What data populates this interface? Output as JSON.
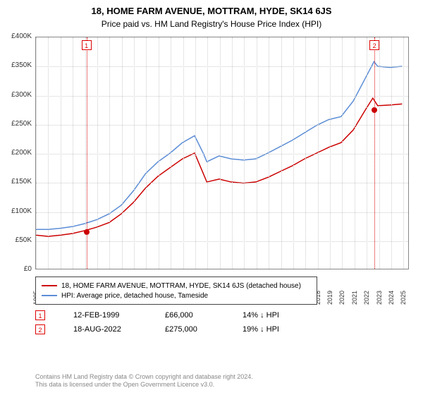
{
  "title": "18, HOME FARM AVENUE, MOTTRAM, HYDE, SK14 6JS",
  "subtitle": "Price paid vs. HM Land Registry's House Price Index (HPI)",
  "chart": {
    "type": "line",
    "background_color": "#ffffff",
    "grid_color": "#cccccc",
    "border_color": "#888888",
    "xlim": [
      1995,
      2025.5
    ],
    "ylim": [
      0,
      400000
    ],
    "ytick_step": 50000,
    "yticks": [
      "£0",
      "£50K",
      "£100K",
      "£150K",
      "£200K",
      "£250K",
      "£300K",
      "£350K",
      "£400K"
    ],
    "xticks": [
      1995,
      1996,
      1997,
      1998,
      1999,
      2000,
      2001,
      2002,
      2003,
      2004,
      2005,
      2006,
      2007,
      2008,
      2009,
      2010,
      2011,
      2012,
      2013,
      2014,
      2015,
      2016,
      2017,
      2018,
      2019,
      2020,
      2021,
      2022,
      2023,
      2024,
      2025
    ],
    "title_fontsize": 13,
    "label_fontsize": 10,
    "series": [
      {
        "name": "property",
        "label": "18, HOME FARM AVENUE, MOTTRAM, HYDE, SK14 6JS (detached house)",
        "color": "#cc0000",
        "line_width": 1.5,
        "data": [
          [
            1995,
            58000
          ],
          [
            1996,
            56000
          ],
          [
            1997,
            58000
          ],
          [
            1998,
            61000
          ],
          [
            1999,
            66000
          ],
          [
            2000,
            72000
          ],
          [
            2001,
            80000
          ],
          [
            2002,
            95000
          ],
          [
            2003,
            115000
          ],
          [
            2004,
            140000
          ],
          [
            2005,
            160000
          ],
          [
            2006,
            175000
          ],
          [
            2007,
            190000
          ],
          [
            2008,
            200000
          ],
          [
            2008.7,
            165000
          ],
          [
            2009,
            150000
          ],
          [
            2010,
            155000
          ],
          [
            2011,
            150000
          ],
          [
            2012,
            148000
          ],
          [
            2013,
            150000
          ],
          [
            2014,
            158000
          ],
          [
            2015,
            168000
          ],
          [
            2016,
            178000
          ],
          [
            2017,
            190000
          ],
          [
            2018,
            200000
          ],
          [
            2019,
            210000
          ],
          [
            2020,
            218000
          ],
          [
            2021,
            240000
          ],
          [
            2022,
            275000
          ],
          [
            2022.6,
            295000
          ],
          [
            2023,
            282000
          ],
          [
            2024,
            283000
          ],
          [
            2025,
            285000
          ]
        ]
      },
      {
        "name": "hpi",
        "label": "HPI: Average price, detached house, Tameside",
        "color": "#5b8dd6",
        "line_width": 1.5,
        "data": [
          [
            1995,
            68000
          ],
          [
            1996,
            68000
          ],
          [
            1997,
            70000
          ],
          [
            1998,
            73000
          ],
          [
            1999,
            78000
          ],
          [
            2000,
            85000
          ],
          [
            2001,
            95000
          ],
          [
            2002,
            110000
          ],
          [
            2003,
            135000
          ],
          [
            2004,
            165000
          ],
          [
            2005,
            185000
          ],
          [
            2006,
            200000
          ],
          [
            2007,
            218000
          ],
          [
            2008,
            230000
          ],
          [
            2008.7,
            200000
          ],
          [
            2009,
            185000
          ],
          [
            2010,
            195000
          ],
          [
            2011,
            190000
          ],
          [
            2012,
            188000
          ],
          [
            2013,
            190000
          ],
          [
            2014,
            200000
          ],
          [
            2015,
            211000
          ],
          [
            2016,
            222000
          ],
          [
            2017,
            235000
          ],
          [
            2018,
            248000
          ],
          [
            2019,
            258000
          ],
          [
            2020,
            263000
          ],
          [
            2021,
            290000
          ],
          [
            2022,
            330000
          ],
          [
            2022.7,
            358000
          ],
          [
            2023,
            350000
          ],
          [
            2024,
            348000
          ],
          [
            2025,
            350000
          ]
        ]
      }
    ],
    "markers": [
      {
        "id": "1",
        "x": 1999.12,
        "y": 66000,
        "dot_color": "#cc0000"
      },
      {
        "id": "2",
        "x": 2022.63,
        "y": 275000,
        "dot_color": "#cc0000"
      }
    ]
  },
  "legend": {
    "items": [
      {
        "color": "#cc0000",
        "label": "18, HOME FARM AVENUE, MOTTRAM, HYDE, SK14 6JS (detached house)"
      },
      {
        "color": "#5b8dd6",
        "label": "HPI: Average price, detached house, Tameside"
      }
    ]
  },
  "events": [
    {
      "id": "1",
      "date": "12-FEB-1999",
      "price": "£66,000",
      "delta": "14% ↓ HPI"
    },
    {
      "id": "2",
      "date": "18-AUG-2022",
      "price": "£275,000",
      "delta": "19% ↓ HPI"
    }
  ],
  "footer": {
    "line1": "Contains HM Land Registry data © Crown copyright and database right 2024.",
    "line2": "This data is licensed under the Open Government Licence v3.0."
  }
}
